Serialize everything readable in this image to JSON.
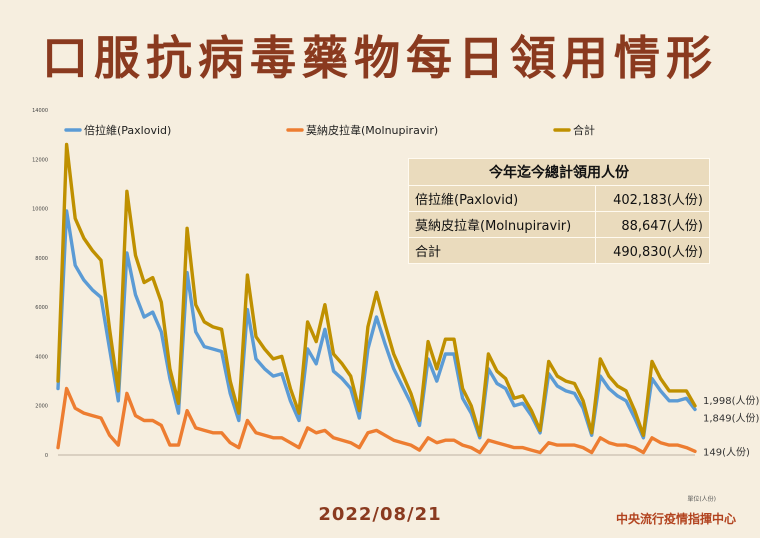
{
  "title": "口服抗病毒藥物每日領用情形",
  "date": "2022/08/21",
  "source": "中央流行疫情指揮中心",
  "unit_note": "單位(人份)",
  "summary_table": {
    "header": "今年迄今總計領用人份",
    "rows": [
      {
        "label": "倍拉維(Paxlovid)",
        "value": "402,183(人份)"
      },
      {
        "label": "莫納皮拉韋(Molnupiravir)",
        "value": "88,647(人份)"
      },
      {
        "label": "合計",
        "value": "490,830(人份)"
      }
    ]
  },
  "end_labels": {
    "total": "1,998(人份)",
    "paxlovid": "1,849(人份)",
    "molnupiravir": "149(人份)"
  },
  "chart_data": {
    "type": "line",
    "ylim": [
      0,
      14000
    ],
    "yticks": [
      0,
      2000,
      4000,
      6000,
      8000,
      10000,
      12000,
      14000
    ],
    "grid": false,
    "legend_position": "top",
    "series": [
      {
        "name": "倍拉維(Paxlovid)",
        "color": "#5b9bd5",
        "values": [
          2700,
          9900,
          7700,
          7100,
          6700,
          6400,
          4300,
          2200,
          8200,
          6500,
          5600,
          5800,
          5000,
          3100,
          1700,
          7400,
          5000,
          4400,
          4300,
          4200,
          2500,
          1400,
          5900,
          3900,
          3500,
          3200,
          3300,
          2200,
          1400,
          4300,
          3700,
          5100,
          3400,
          3100,
          2700,
          1500,
          4300,
          5600,
          4500,
          3500,
          2800,
          2100,
          1200,
          3900,
          3000,
          4100,
          4100,
          2300,
          1700,
          700,
          3500,
          2900,
          2700,
          2000,
          2100,
          1600,
          900,
          3300,
          2800,
          2600,
          2500,
          1900,
          800,
          3200,
          2700,
          2400,
          2200,
          1500,
          700,
          3100,
          2600,
          2200,
          2200,
          2300,
          1849
        ]
      },
      {
        "name": "莫納皮拉韋(Molnupiravir)",
        "color": "#ed7d31",
        "values": [
          300,
          2700,
          1900,
          1700,
          1600,
          1500,
          800,
          400,
          2500,
          1600,
          1400,
          1400,
          1200,
          400,
          400,
          1800,
          1100,
          1000,
          900,
          900,
          500,
          300,
          1400,
          900,
          800,
          700,
          700,
          500,
          300,
          1100,
          900,
          1000,
          700,
          600,
          500,
          300,
          900,
          1000,
          800,
          600,
          500,
          400,
          200,
          700,
          500,
          600,
          600,
          400,
          300,
          100,
          600,
          500,
          400,
          300,
          300,
          200,
          100,
          500,
          400,
          400,
          400,
          300,
          100,
          700,
          500,
          400,
          400,
          300,
          100,
          700,
          500,
          400,
          400,
          300,
          149
        ]
      },
      {
        "name": "合計",
        "color": "#bf9000",
        "values": [
          3000,
          12600,
          9600,
          8800,
          8300,
          7900,
          5100,
          2600,
          10700,
          8100,
          7000,
          7200,
          6200,
          3500,
          2100,
          9200,
          6100,
          5400,
          5200,
          5100,
          3000,
          1700,
          7300,
          4800,
          4300,
          3900,
          4000,
          2700,
          1700,
          5400,
          4600,
          6100,
          4100,
          3700,
          3200,
          1800,
          5200,
          6600,
          5300,
          4100,
          3300,
          2500,
          1400,
          4600,
          3500,
          4700,
          4700,
          2700,
          2000,
          800,
          4100,
          3400,
          3100,
          2300,
          2400,
          1800,
          1000,
          3800,
          3200,
          3000,
          2900,
          2200,
          900,
          3900,
          3200,
          2800,
          2600,
          1800,
          800,
          3800,
          3100,
          2600,
          2600,
          2600,
          1998
        ]
      }
    ]
  }
}
